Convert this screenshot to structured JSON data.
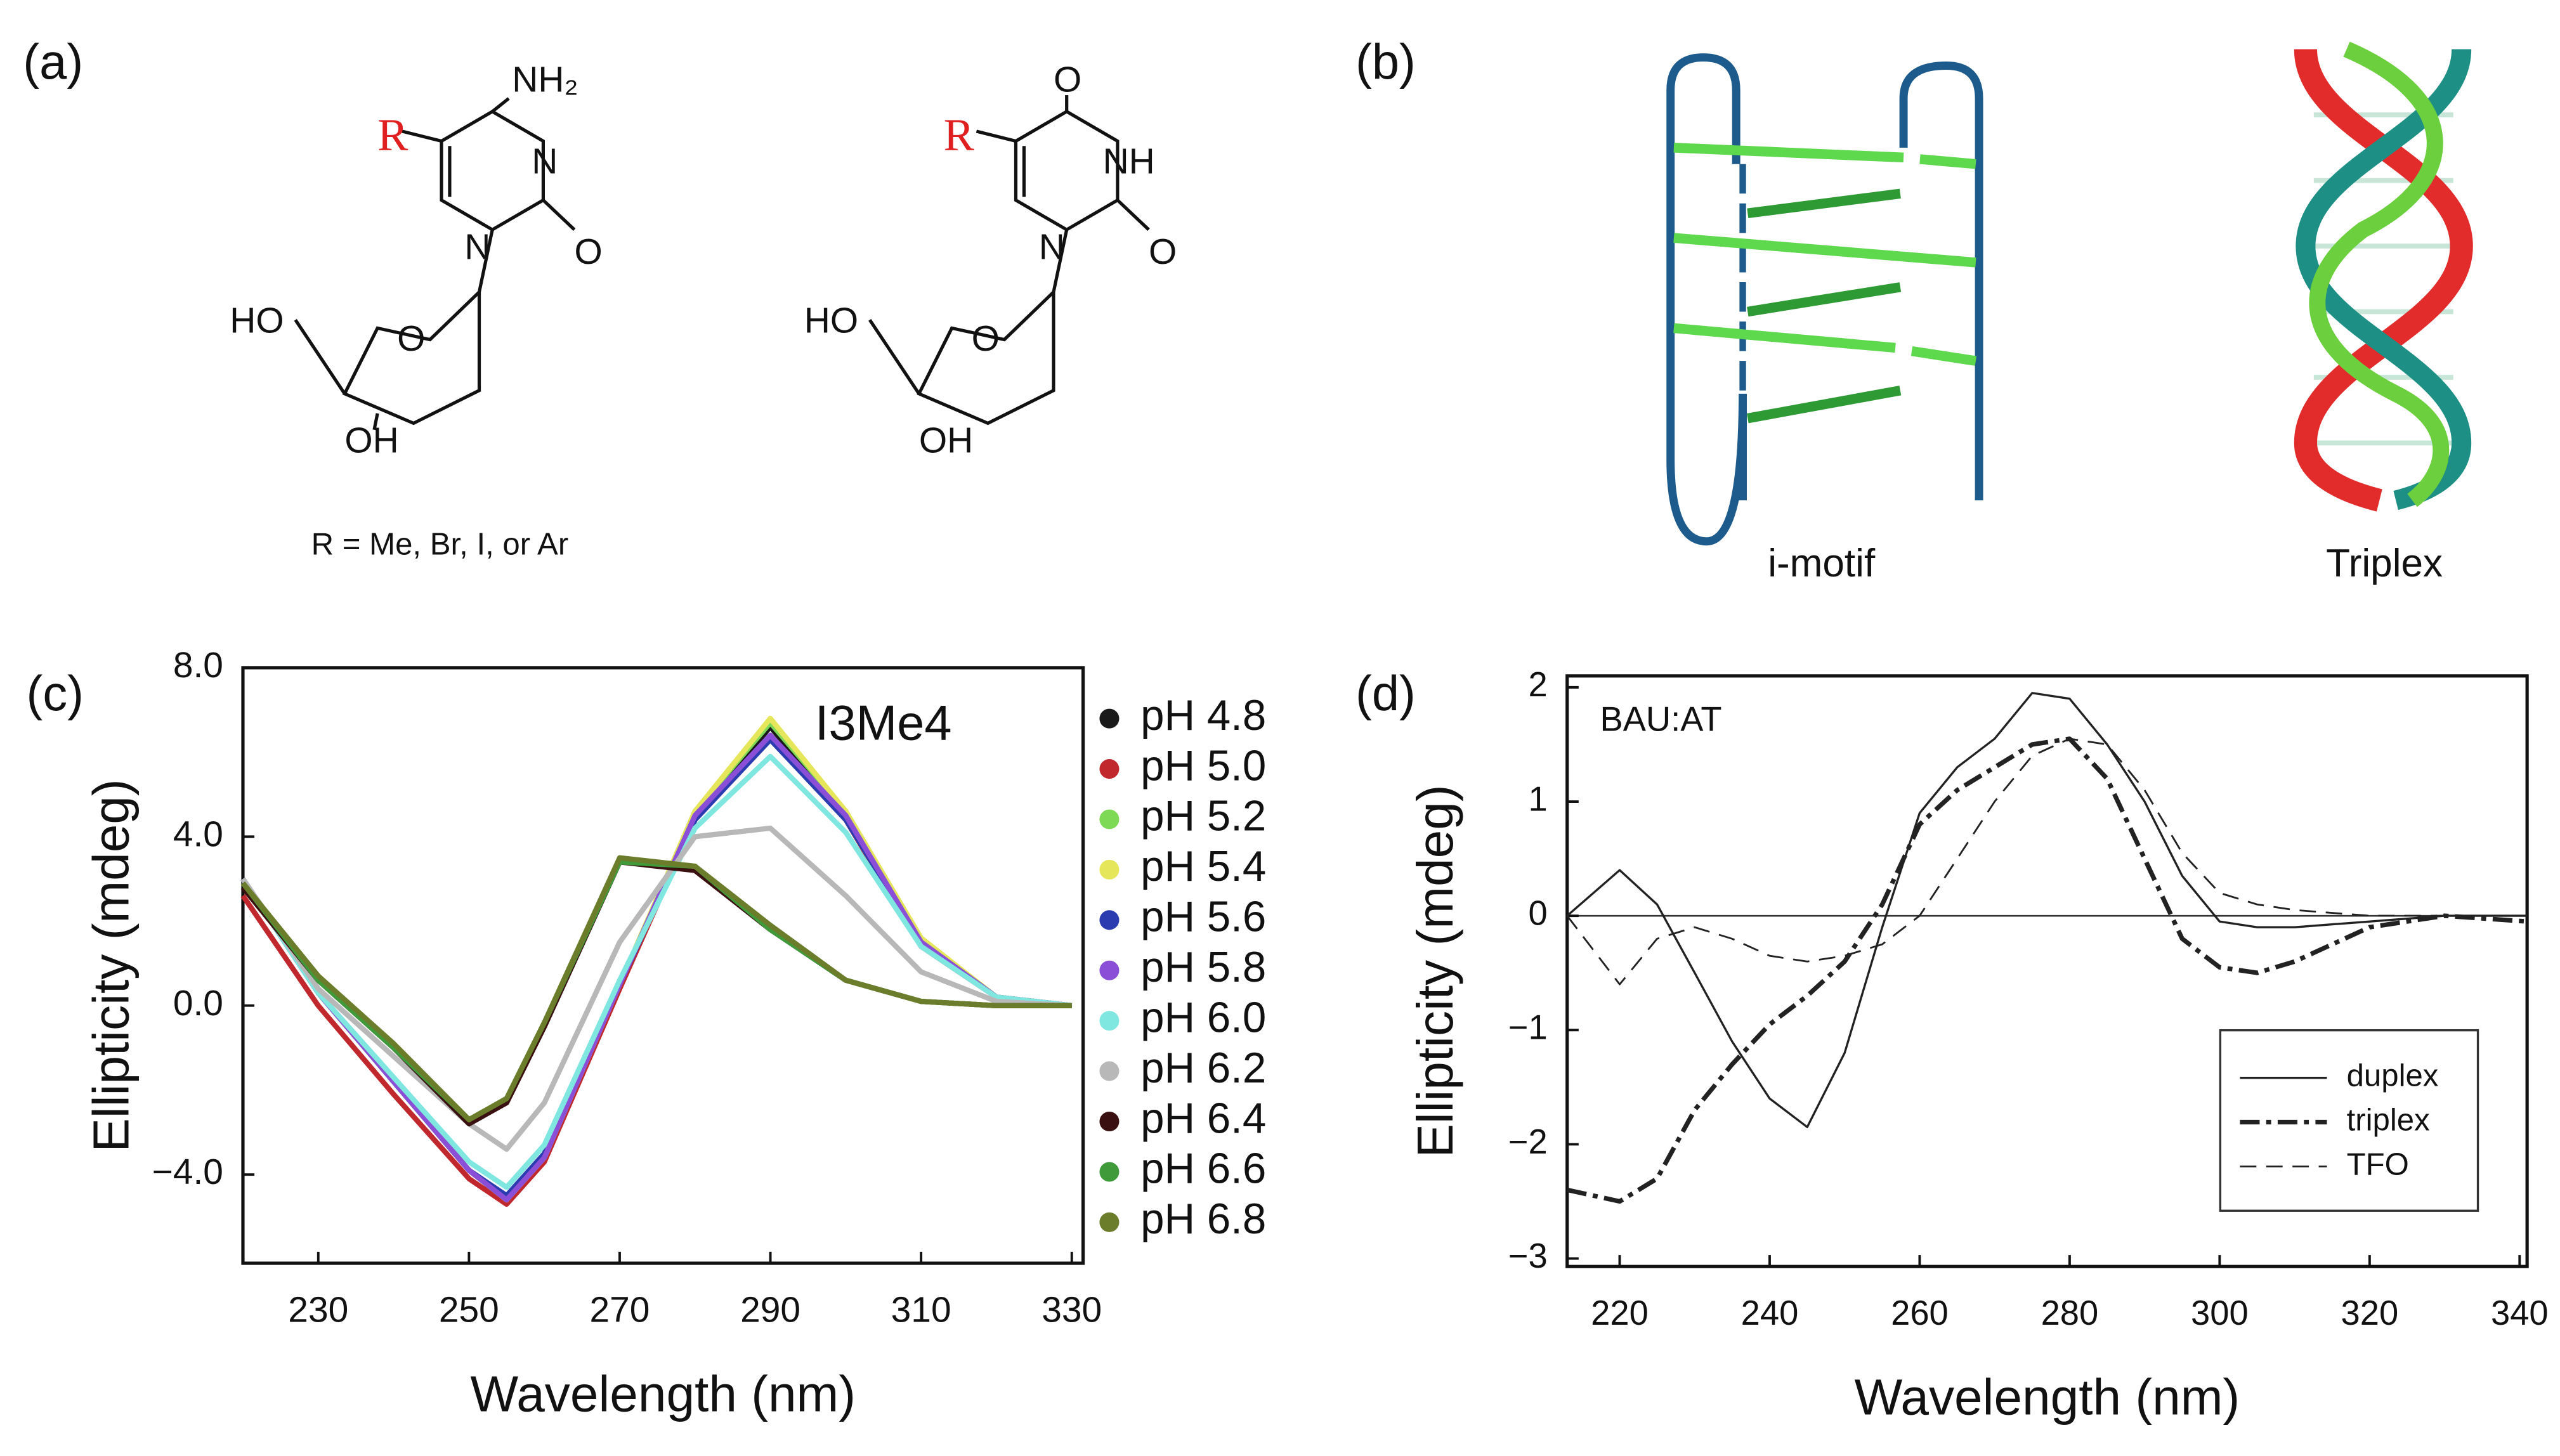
{
  "panel_a": {
    "label": "(a)",
    "caption": "R = Me, Br, I, or Ar",
    "structure_1": {
      "atoms": [
        "R",
        "NH₂",
        "N",
        "O",
        "N",
        "HO",
        "O",
        "OH"
      ]
    },
    "structure_2": {
      "atoms": [
        "R",
        "O",
        "NH",
        "O",
        "N",
        "HO",
        "O",
        "OH"
      ]
    }
  },
  "panel_b": {
    "label": "(b)",
    "labels": [
      "i-motif",
      "Triplex"
    ]
  },
  "chart_data": [
    {
      "type": "line",
      "panel_label": "(c)",
      "annotation": "I3Me4",
      "x_label": "Wavelength (nm)",
      "y_label": "Ellipticity (mdeg)",
      "xlim": [
        220,
        331.5
      ],
      "xticks": [
        230,
        250,
        270,
        290,
        310,
        330
      ],
      "ylim": [
        -6.1,
        8.0
      ],
      "yticks": [
        {
          "value": -4,
          "label": "−4.0"
        },
        {
          "value": 0,
          "label": "0.0"
        },
        {
          "value": 4,
          "label": "4.0"
        },
        {
          "value": 8,
          "label": "8.0"
        }
      ],
      "grid": false,
      "legend": "outside right",
      "x": [
        220,
        230,
        240,
        250,
        255,
        260,
        270,
        280,
        290,
        300,
        310,
        320,
        330
      ],
      "series": [
        {
          "name": "pH 4.8",
          "color": "#1a1a1a",
          "values": [
            3.0,
            0.3,
            -1.8,
            -3.9,
            -4.6,
            -3.6,
            0.5,
            4.5,
            6.6,
            4.5,
            1.5,
            0.2,
            0
          ]
        },
        {
          "name": "pH 5.0",
          "color": "#c0282e",
          "values": [
            2.6,
            0.0,
            -2.1,
            -4.1,
            -4.7,
            -3.7,
            0.4,
            4.4,
            6.4,
            4.4,
            1.4,
            0.2,
            0
          ]
        },
        {
          "name": "pH 5.2",
          "color": "#7ed957",
          "values": [
            3.0,
            0.3,
            -1.8,
            -3.9,
            -4.6,
            -3.6,
            0.5,
            4.6,
            6.7,
            4.6,
            1.5,
            0.2,
            0
          ]
        },
        {
          "name": "pH 5.4",
          "color": "#e6e65a",
          "values": [
            3.0,
            0.3,
            -1.8,
            -3.9,
            -4.6,
            -3.6,
            0.5,
            4.6,
            6.8,
            4.6,
            1.6,
            0.2,
            0
          ]
        },
        {
          "name": "pH 5.6",
          "color": "#2a3cb0",
          "values": [
            3.0,
            0.3,
            -1.8,
            -3.9,
            -4.5,
            -3.5,
            0.5,
            4.4,
            6.3,
            4.4,
            1.5,
            0.2,
            0
          ]
        },
        {
          "name": "pH 5.8",
          "color": "#8a4fd6",
          "values": [
            3.0,
            0.3,
            -1.8,
            -3.9,
            -4.6,
            -3.6,
            0.5,
            4.5,
            6.4,
            4.5,
            1.5,
            0.2,
            0
          ]
        },
        {
          "name": "pH 6.0",
          "color": "#7fe6e0",
          "values": [
            3.0,
            0.3,
            -1.7,
            -3.7,
            -4.3,
            -3.3,
            0.6,
            4.2,
            5.9,
            4.1,
            1.4,
            0.2,
            0
          ]
        },
        {
          "name": "pH 6.2",
          "color": "#b8b8b8",
          "values": [
            3.0,
            0.4,
            -1.2,
            -2.8,
            -3.4,
            -2.3,
            1.5,
            4.0,
            4.2,
            2.6,
            0.8,
            0.1,
            0
          ]
        },
        {
          "name": "pH 6.4",
          "color": "#3a1010",
          "values": [
            2.8,
            0.6,
            -1.0,
            -2.8,
            -2.3,
            -0.5,
            3.4,
            3.2,
            1.8,
            0.6,
            0.1,
            0,
            0
          ]
        },
        {
          "name": "pH 6.6",
          "color": "#3f9a3a",
          "values": [
            2.9,
            0.6,
            -1.0,
            -2.7,
            -2.2,
            -0.4,
            3.4,
            3.3,
            1.8,
            0.6,
            0.1,
            0,
            0
          ]
        },
        {
          "name": "pH 6.8",
          "color": "#6b7d2a",
          "values": [
            2.9,
            0.7,
            -0.9,
            -2.7,
            -2.2,
            -0.4,
            3.5,
            3.3,
            1.9,
            0.6,
            0.1,
            0,
            0
          ]
        }
      ]
    },
    {
      "type": "line",
      "panel_label": "(d)",
      "annotation": "BAU:AT",
      "x_label": "Wavelength (nm)",
      "y_label": "Ellipticity (mdeg)",
      "xlim": [
        213,
        341
      ],
      "xticks": [
        220,
        240,
        260,
        280,
        300,
        320,
        340
      ],
      "ylim": [
        -3.07,
        2.1
      ],
      "yticks": [
        {
          "value": -3,
          "label": "−3"
        },
        {
          "value": -2,
          "label": "−2"
        },
        {
          "value": -1,
          "label": "−1"
        },
        0,
        1,
        2
      ],
      "reference_line": 0,
      "grid": false,
      "legend": "lower right",
      "x": [
        213,
        220,
        225,
        230,
        235,
        240,
        245,
        250,
        255,
        260,
        265,
        270,
        275,
        280,
        285,
        290,
        295,
        300,
        305,
        310,
        320,
        330,
        341
      ],
      "series": [
        {
          "name": "duplex",
          "color": "#222222",
          "dash": "solid",
          "width": 1.3,
          "values": [
            0,
            0.4,
            0.1,
            -0.5,
            -1.1,
            -1.6,
            -1.85,
            -1.2,
            -0.1,
            0.9,
            1.3,
            1.55,
            1.95,
            1.9,
            1.5,
            1.0,
            0.35,
            -0.05,
            -0.1,
            -0.1,
            -0.05,
            0,
            0
          ]
        },
        {
          "name": "triplex",
          "color": "#222222",
          "dash": "dashdot",
          "width": 2.8,
          "values": [
            -2.4,
            -2.5,
            -2.3,
            -1.7,
            -1.3,
            -0.95,
            -0.7,
            -0.4,
            0.1,
            0.8,
            1.1,
            1.3,
            1.5,
            1.55,
            1.2,
            0.5,
            -0.2,
            -0.45,
            -0.5,
            -0.4,
            -0.1,
            0,
            -0.05
          ]
        },
        {
          "name": "TFO",
          "color": "#222222",
          "dash": "dashed",
          "width": 1.1,
          "values": [
            0,
            -0.6,
            -0.2,
            -0.1,
            -0.2,
            -0.35,
            -0.4,
            -0.35,
            -0.25,
            0,
            0.5,
            1.0,
            1.4,
            1.55,
            1.5,
            1.1,
            0.55,
            0.2,
            0.1,
            0.05,
            0,
            0,
            0
          ]
        }
      ]
    }
  ]
}
